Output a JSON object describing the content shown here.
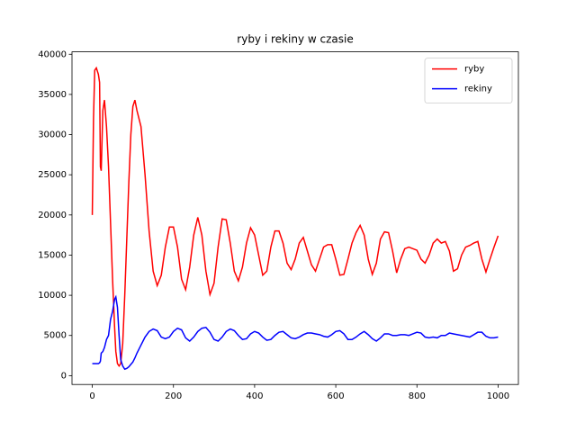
{
  "chart_data": {
    "type": "line",
    "title": "ryby i rekiny w czasie",
    "x": [
      0,
      3,
      6,
      10,
      15,
      18,
      20,
      22,
      26,
      30,
      35,
      40,
      45,
      50,
      55,
      58,
      62,
      66,
      70,
      75,
      80,
      85,
      90,
      95,
      100,
      105,
      110,
      115,
      120,
      130,
      140,
      150,
      160,
      170,
      180,
      190,
      200,
      210,
      220,
      230,
      240,
      250,
      260,
      270,
      280,
      290,
      300,
      310,
      320,
      330,
      340,
      350,
      360,
      370,
      380,
      390,
      400,
      410,
      420,
      430,
      440,
      450,
      460,
      470,
      480,
      490,
      500,
      510,
      520,
      530,
      540,
      550,
      560,
      570,
      580,
      590,
      600,
      610,
      620,
      630,
      640,
      650,
      660,
      670,
      680,
      690,
      700,
      710,
      720,
      730,
      740,
      750,
      760,
      770,
      780,
      790,
      800,
      810,
      820,
      830,
      840,
      850,
      860,
      870,
      880,
      890,
      900,
      910,
      920,
      930,
      940,
      950,
      960,
      970,
      980,
      990,
      1000
    ],
    "series": [
      {
        "name": "ryby",
        "color": "#ff0000",
        "values": [
          20000,
          32000,
          38000,
          38300,
          37500,
          36500,
          26000,
          25500,
          33000,
          34300,
          31000,
          26000,
          19000,
          12000,
          6000,
          3000,
          1500,
          1200,
          1500,
          4000,
          10000,
          17000,
          24000,
          30000,
          33500,
          34300,
          33000,
          32000,
          31000,
          25000,
          18000,
          13000,
          11200,
          12500,
          16000,
          18500,
          18500,
          16000,
          12000,
          10700,
          13500,
          17500,
          19700,
          17500,
          13000,
          10100,
          11500,
          16000,
          19500,
          19400,
          16500,
          13000,
          11800,
          13500,
          16500,
          18400,
          17500,
          15000,
          12500,
          13000,
          16000,
          18000,
          18000,
          16500,
          14000,
          13200,
          14500,
          16500,
          17200,
          15500,
          13800,
          13000,
          14500,
          16000,
          16300,
          16300,
          14500,
          12500,
          12600,
          14500,
          16500,
          17800,
          18700,
          17500,
          14500,
          12600,
          14000,
          17000,
          17900,
          17800,
          15500,
          12800,
          14500,
          15800,
          16000,
          15800,
          15600,
          14500,
          14000,
          15000,
          16500,
          17000,
          16500,
          16700,
          15500,
          13000,
          13300,
          15000,
          16000,
          16200,
          16500,
          16700,
          14500,
          12900,
          14500,
          16000,
          17400
        ]
      },
      {
        "name": "rekiny",
        "color": "#0000ff",
        "values": [
          1500,
          1500,
          1500,
          1500,
          1500,
          1600,
          1800,
          2800,
          3000,
          3500,
          4500,
          5000,
          7000,
          8000,
          9500,
          9800,
          8500,
          5000,
          2000,
          1200,
          800,
          900,
          1100,
          1400,
          1700,
          2200,
          2800,
          3300,
          3800,
          4800,
          5500,
          5800,
          5600,
          4800,
          4600,
          4800,
          5500,
          5900,
          5700,
          4700,
          4300,
          4800,
          5500,
          5900,
          6000,
          5400,
          4500,
          4300,
          4800,
          5500,
          5800,
          5600,
          5000,
          4500,
          4600,
          5200,
          5500,
          5300,
          4800,
          4400,
          4500,
          5000,
          5400,
          5500,
          5100,
          4700,
          4600,
          4800,
          5100,
          5300,
          5300,
          5200,
          5100,
          4900,
          4800,
          5100,
          5500,
          5600,
          5200,
          4500,
          4500,
          4800,
          5200,
          5500,
          5100,
          4600,
          4300,
          4700,
          5200,
          5200,
          5000,
          5000,
          5100,
          5100,
          5000,
          5200,
          5400,
          5300,
          4800,
          4700,
          4800,
          4700,
          5000,
          5000,
          5300,
          5200,
          5100,
          5000,
          4900,
          4800,
          5100,
          5400,
          5400,
          4900,
          4700,
          4700,
          4800
        ]
      }
    ],
    "xlim": [
      -50,
      1050
    ],
    "ylim": [
      -1100,
      40300
    ],
    "xticks": [
      0,
      200,
      400,
      600,
      800,
      1000
    ],
    "yticks": [
      0,
      5000,
      10000,
      15000,
      20000,
      25000,
      30000,
      35000,
      40000
    ],
    "legend": "upper right"
  }
}
